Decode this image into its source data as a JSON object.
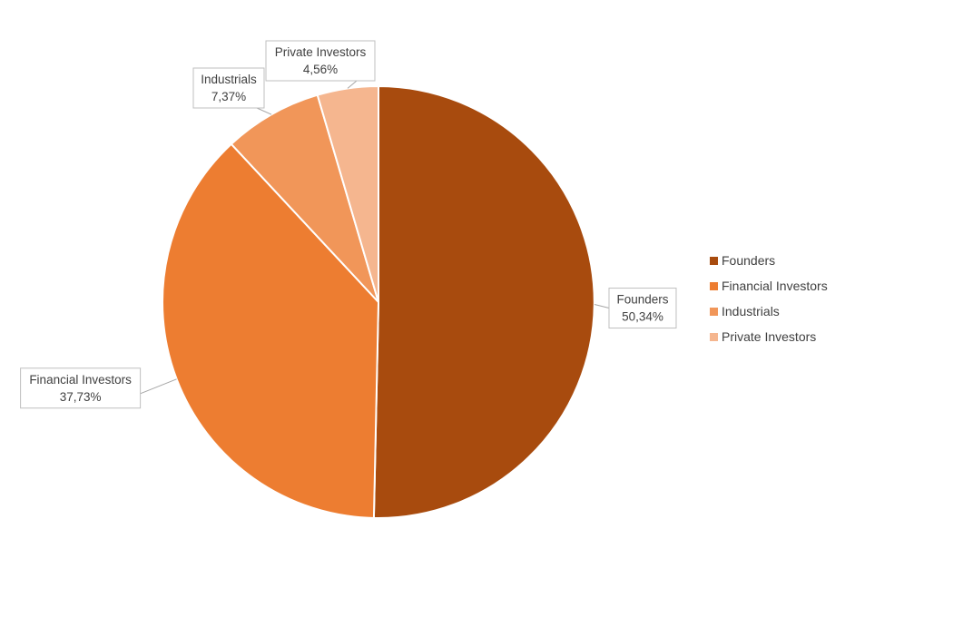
{
  "chart_data": {
    "type": "pie",
    "title": "",
    "legend_position": "right",
    "slices": [
      {
        "label": "Founders",
        "value": 50.34,
        "value_text": "50,34%",
        "color": "#A84B0E"
      },
      {
        "label": "Financial Investors",
        "value": 37.73,
        "value_text": "37,73%",
        "color": "#ED7D31"
      },
      {
        "label": "Industrials",
        "value": 7.37,
        "value_text": "7,37%",
        "color": "#F19659"
      },
      {
        "label": "Private Investors",
        "value": 4.56,
        "value_text": "4,56%",
        "color": "#F5B68F"
      }
    ]
  }
}
